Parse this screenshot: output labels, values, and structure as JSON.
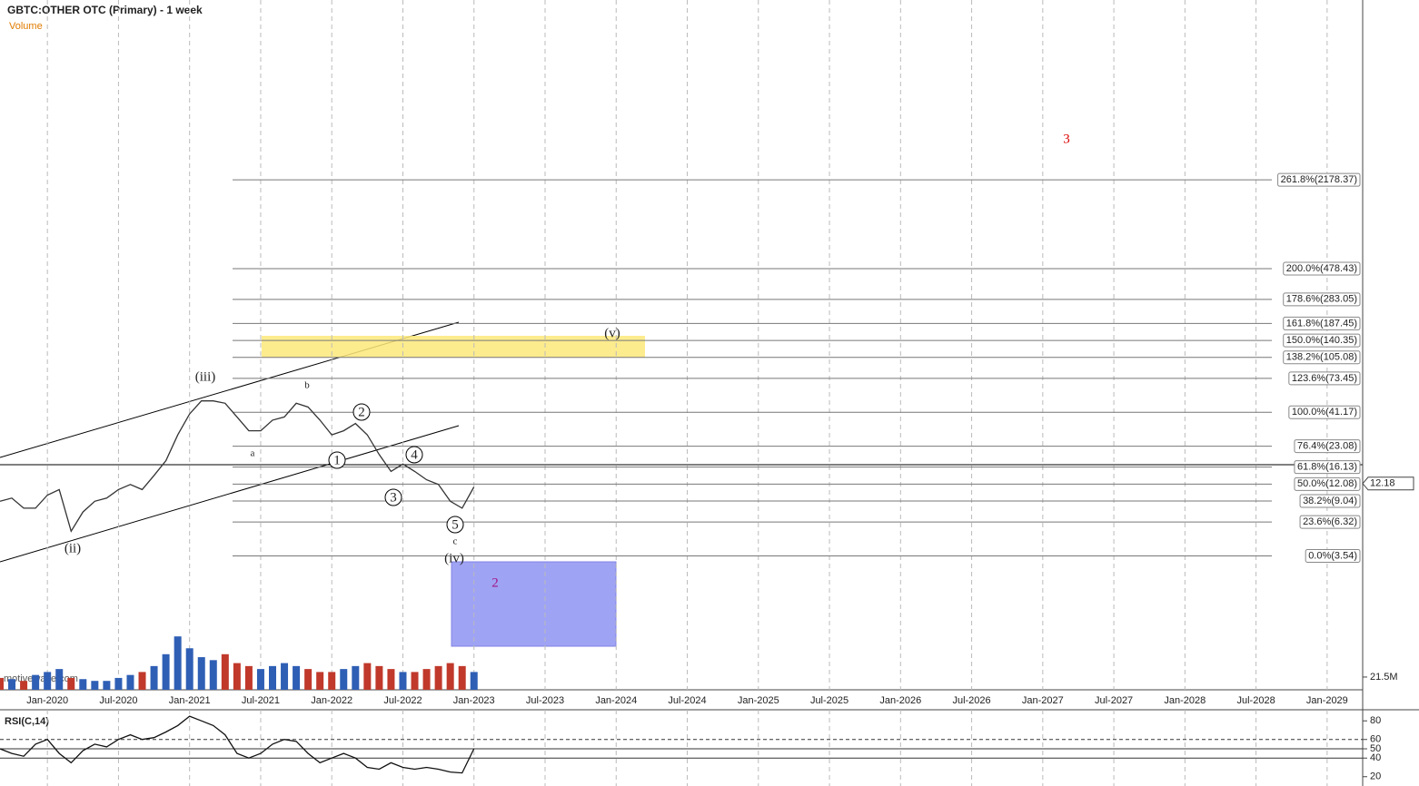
{
  "chart_data": {
    "type": "line",
    "title": "GBTC:OTHER OTC (Primary) - 1 week",
    "volume_label": "Volume",
    "rsi_label": "RSI(C,14)",
    "watermark": "motivewave.com",
    "log_scale": true,
    "x": [
      "2019-09",
      "2019-10",
      "2019-11",
      "2019-12",
      "2020-01",
      "2020-02",
      "2020-03",
      "2020-04",
      "2020-05",
      "2020-06",
      "2020-07",
      "2020-08",
      "2020-09",
      "2020-10",
      "2020-11",
      "2020-12",
      "2021-01",
      "2021-02",
      "2021-03",
      "2021-04",
      "2021-05",
      "2021-06",
      "2021-07",
      "2021-08",
      "2021-09",
      "2021-10",
      "2021-11",
      "2021-12",
      "2022-01",
      "2022-02",
      "2022-03",
      "2022-04",
      "2022-05",
      "2022-06",
      "2022-07",
      "2022-08",
      "2022-09",
      "2022-10",
      "2022-11",
      "2022-12",
      "2023-01"
    ],
    "series": [
      {
        "name": "GBTC",
        "color": "#333333",
        "values": [
          9,
          9.5,
          8,
          8,
          10,
          11,
          5.4,
          7.5,
          9,
          9.5,
          11,
          12,
          11,
          14,
          18,
          28,
          40,
          50,
          50,
          48,
          38,
          30,
          30,
          36,
          38,
          48,
          45,
          36,
          28,
          30,
          34,
          28,
          20,
          15,
          17,
          15,
          13,
          12,
          9,
          8,
          11.5
        ]
      },
      {
        "name": "Volume",
        "color": "#c0392b",
        "values": [
          20,
          18,
          15,
          25,
          30,
          35,
          20,
          18,
          15,
          15,
          20,
          25,
          30,
          40,
          60,
          90,
          70,
          55,
          50,
          60,
          45,
          40,
          35,
          40,
          45,
          40,
          35,
          30,
          30,
          35,
          40,
          45,
          40,
          35,
          30,
          30,
          35,
          40,
          45,
          40,
          30
        ]
      },
      {
        "name": "RSI",
        "color": "#111111",
        "values": [
          50,
          45,
          42,
          55,
          60,
          45,
          35,
          48,
          55,
          52,
          60,
          65,
          60,
          62,
          68,
          75,
          85,
          80,
          75,
          65,
          45,
          40,
          45,
          55,
          60,
          58,
          45,
          35,
          40,
          45,
          40,
          30,
          28,
          35,
          30,
          28,
          30,
          28,
          25,
          24,
          50
        ]
      }
    ],
    "xlim": [
      "2019-09",
      "2029-04"
    ],
    "xticks": [
      {
        "value": "2020-01",
        "label": "Jan-2020"
      },
      {
        "value": "2020-07",
        "label": "Jul-2020"
      },
      {
        "value": "2021-01",
        "label": "Jan-2021"
      },
      {
        "value": "2021-07",
        "label": "Jul-2021"
      },
      {
        "value": "2022-01",
        "label": "Jan-2022"
      },
      {
        "value": "2022-07",
        "label": "Jul-2022"
      },
      {
        "value": "2023-01",
        "label": "Jan-2023"
      },
      {
        "value": "2023-07",
        "label": "Jul-2023"
      },
      {
        "value": "2024-01",
        "label": "Jan-2024"
      },
      {
        "value": "2024-07",
        "label": "Jul-2024"
      },
      {
        "value": "2025-01",
        "label": "Jan-2025"
      },
      {
        "value": "2025-07",
        "label": "Jul-2025"
      },
      {
        "value": "2026-01",
        "label": "Jan-2026"
      },
      {
        "value": "2026-07",
        "label": "Jul-2026"
      },
      {
        "value": "2027-01",
        "label": "Jan-2027"
      },
      {
        "value": "2027-07",
        "label": "Jul-2027"
      },
      {
        "value": "2028-01",
        "label": "Jan-2028"
      },
      {
        "value": "2028-07",
        "label": "Jul-2028"
      },
      {
        "value": "2029-01",
        "label": "Jan-2029"
      }
    ],
    "ylim": [
      0.36,
      47000
    ],
    "last_price": 12.18,
    "fib_levels": [
      {
        "value": 2178.37,
        "label": "261.8%(2178.37)"
      },
      {
        "value": 478.43,
        "label": "200.0%(478.43)"
      },
      {
        "value": 283.05,
        "label": "178.6%(283.05)"
      },
      {
        "value": 187.45,
        "label": "161.8%(187.45)"
      },
      {
        "value": 140.35,
        "label": "150.0%(140.35)"
      },
      {
        "value": 105.08,
        "label": "138.2%(105.08)"
      },
      {
        "value": 73.45,
        "label": "123.6%(73.45)"
      },
      {
        "value": 41.17,
        "label": "100.0%(41.17)"
      },
      {
        "value": 23.08,
        "label": "76.4%(23.08)"
      },
      {
        "value": 16.13,
        "label": "61.8%(16.13)"
      },
      {
        "value": 12.08,
        "label": "50.0%(12.08)"
      },
      {
        "value": 9.04,
        "label": "38.2%(9.04)"
      },
      {
        "value": 6.32,
        "label": "23.6%(6.32)"
      },
      {
        "value": 3.54,
        "label": "0.0%(3.54)"
      }
    ],
    "volume_ylim": [
      0,
      153
    ],
    "volume_yticks": [
      {
        "value": 21.5,
        "label": "21.5M"
      }
    ],
    "rsi_ylim": [
      10,
      89
    ],
    "rsi_yticks": [
      20,
      40,
      50,
      60,
      80
    ],
    "annotations": [
      "(iii)",
      "(ii)",
      "a",
      "b",
      "1",
      "2",
      "3",
      "4",
      "5",
      "c",
      "(iv)",
      "(v)",
      "2",
      "3"
    ]
  }
}
